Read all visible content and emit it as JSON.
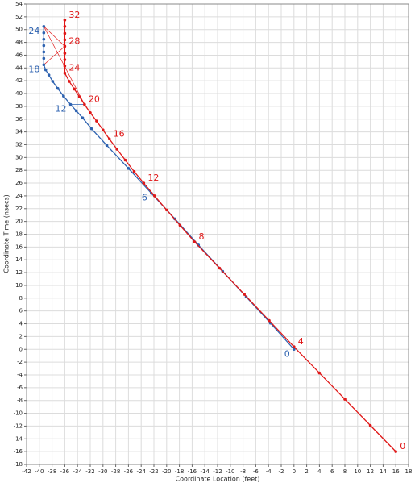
{
  "chart_data": {
    "type": "line",
    "x_label": "Coordinate Location (feet)",
    "y_label": "Coordinate Time (nsecs)",
    "xlim": [
      -42,
      18
    ],
    "ylim": [
      -18,
      54
    ],
    "xticks": [
      -42,
      -40,
      -38,
      -36,
      -34,
      -32,
      -30,
      -28,
      -26,
      -24,
      -22,
      -20,
      -18,
      -16,
      -14,
      -12,
      -10,
      -8,
      -6,
      -4,
      -2,
      0,
      2,
      4,
      6,
      8,
      10,
      12,
      14,
      16,
      18
    ],
    "yticks": [
      -18,
      -16,
      -14,
      -12,
      -10,
      -8,
      -6,
      -4,
      -2,
      0,
      2,
      4,
      6,
      8,
      10,
      12,
      14,
      16,
      18,
      20,
      22,
      24,
      26,
      28,
      30,
      32,
      34,
      36,
      38,
      40,
      42,
      44,
      46,
      48,
      50,
      52,
      54
    ],
    "grid": true,
    "series": [
      {
        "color": "#2d62b0",
        "x": [
          0,
          -3.7,
          -7.5,
          -11.2,
          -15,
          -18.7,
          -22.4,
          -26,
          -29.4,
          -31.8,
          -33.2,
          -34.2,
          -35.1,
          -36.2,
          -37.1,
          -37.9,
          -38.5,
          -39,
          -39.3,
          -39.3,
          -39.3,
          -39.3,
          -39.3,
          -39.3,
          -39.3
        ],
        "y": [
          0,
          4.1,
          8.2,
          12.2,
          16.3,
          20.4,
          24.4,
          28.3,
          31.9,
          34.5,
          36.2,
          37.3,
          38.3,
          39.6,
          40.8,
          41.9,
          42.9,
          43.7,
          44.5,
          45.5,
          46.5,
          47.5,
          48.5,
          49.5,
          50.5
        ],
        "labels": [
          "0",
          null,
          null,
          null,
          null,
          null,
          "6",
          null,
          null,
          null,
          null,
          null,
          "12",
          null,
          null,
          null,
          null,
          null,
          "18",
          null,
          null,
          null,
          null,
          null,
          "24"
        ]
      },
      {
        "color": "#e01818",
        "x": [
          16,
          12,
          8,
          4,
          0,
          -3.9,
          -7.8,
          -11.7,
          -15.6,
          -17.9,
          -20,
          -21.9,
          -23.6,
          -25.1,
          -26.5,
          -27.8,
          -29,
          -30,
          -31,
          -32,
          -32.9,
          -33.7,
          -34.5,
          -35.3,
          -36,
          -36,
          -36,
          -36,
          -36,
          -36,
          -36,
          -36,
          -36
        ],
        "y": [
          -16,
          -11.9,
          -7.8,
          -3.7,
          0.4,
          4.5,
          8.6,
          12.7,
          16.8,
          19.4,
          21.8,
          24,
          26,
          27.8,
          29.6,
          31.3,
          32.9,
          34.3,
          35.7,
          37,
          38.3,
          39.5,
          40.7,
          41.9,
          43.2,
          44.3,
          45.3,
          46.3,
          47.4,
          48.4,
          49.4,
          50.5,
          51.5
        ],
        "labels": [
          "0",
          null,
          null,
          null,
          "4",
          null,
          null,
          null,
          "8",
          null,
          null,
          null,
          "12",
          null,
          null,
          null,
          "16",
          null,
          null,
          null,
          "20",
          null,
          null,
          null,
          "24",
          null,
          null,
          null,
          "28",
          null,
          null,
          null,
          "32"
        ]
      }
    ],
    "connectors": [
      {
        "color": "#e01818",
        "x": [
          -39.3,
          -36
        ],
        "y": [
          50.5,
          47.4
        ]
      },
      {
        "color": "#e01818",
        "x": [
          -39.3,
          -36
        ],
        "y": [
          44.5,
          47.4
        ]
      },
      {
        "color": "#e01818",
        "x": [
          -39.3,
          -32.9
        ],
        "y": [
          50.5,
          38.3
        ]
      },
      {
        "color": "#2d62b0",
        "x": [
          -35.1,
          -32.9
        ],
        "y": [
          38.3,
          38.3
        ]
      }
    ]
  }
}
